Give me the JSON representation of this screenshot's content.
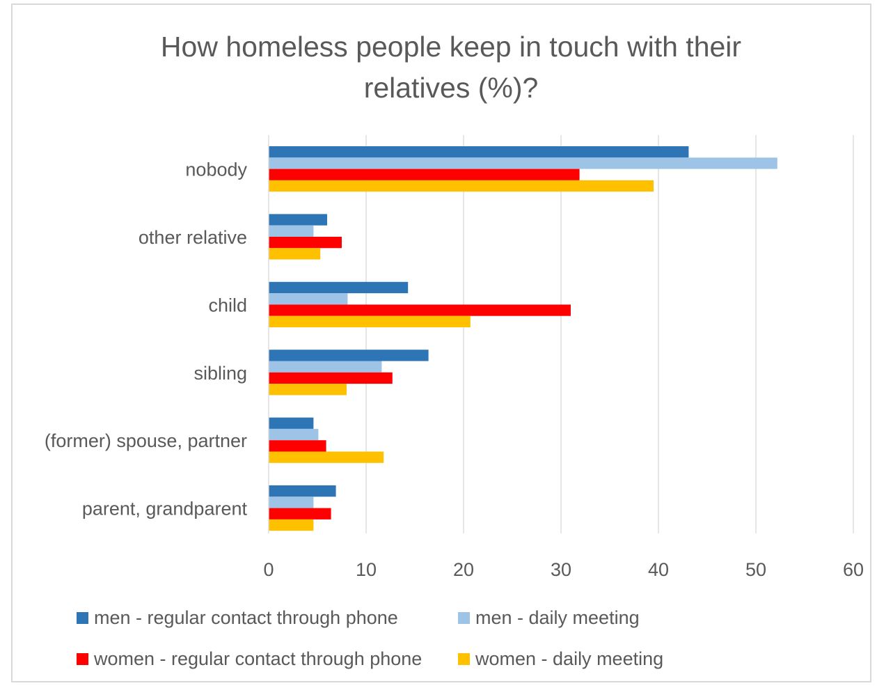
{
  "chart_data": {
    "type": "bar",
    "orientation": "horizontal",
    "title": "How homeless people keep in touch with their relatives (%)?",
    "title_lines": [
      "How homeless people keep in touch with their",
      "relatives (%)?"
    ],
    "categories": [
      "nobody",
      "other relative",
      "child",
      "sibling",
      "(former) spouse, partner",
      "parent, grandparent"
    ],
    "series": [
      {
        "name": "men - regular contact through phone",
        "color": "#2e75b6",
        "values": [
          43.1,
          6.0,
          14.3,
          16.4,
          4.6,
          6.9
        ]
      },
      {
        "name": "men - daily meeting",
        "color": "#9dc3e6",
        "values": [
          52.2,
          4.6,
          8.1,
          11.6,
          5.1,
          4.6
        ]
      },
      {
        "name": "women - regular contact through phone",
        "color": "#ff0000",
        "values": [
          31.9,
          7.5,
          31.0,
          12.7,
          5.9,
          6.4
        ]
      },
      {
        "name": "women - daily meeting",
        "color": "#ffc000",
        "values": [
          39.5,
          5.3,
          20.7,
          8.0,
          11.8,
          4.6
        ]
      }
    ],
    "xlim": [
      0,
      60
    ],
    "xticks": [
      0,
      10,
      20,
      30,
      40,
      50,
      60
    ],
    "xlabel": "",
    "ylabel": "",
    "grid": true,
    "legend_position": "bottom"
  }
}
